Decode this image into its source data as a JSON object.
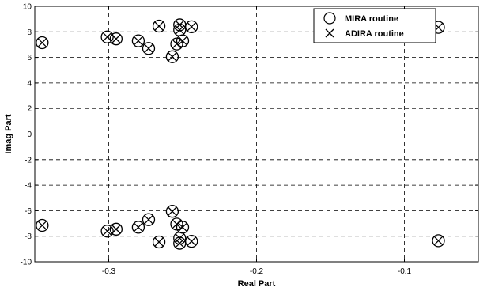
{
  "chart_data": {
    "type": "scatter",
    "xlabel": "Real Part",
    "ylabel": "Imag Part",
    "xlim": [
      -0.35,
      -0.05
    ],
    "ylim": [
      -10,
      10
    ],
    "x_ticks": [
      -0.3,
      -0.2,
      -0.1
    ],
    "x_tick_labels": [
      "-0.3",
      "-0.2",
      "-0.1"
    ],
    "y_ticks": [
      -10,
      -8,
      -6,
      -4,
      -2,
      0,
      2,
      4,
      6,
      8,
      10
    ],
    "y_tick_labels": [
      "-10",
      "-8",
      "-6",
      "-4",
      "-2",
      "0",
      "2",
      "4",
      "6",
      "8",
      "10"
    ],
    "grid": true,
    "legend_position": "top-right",
    "series": [
      {
        "name": "MIRA routine",
        "marker": "circle",
        "points": [
          [
            -0.345,
            7.15
          ],
          [
            -0.345,
            -7.15
          ],
          [
            -0.301,
            7.6
          ],
          [
            -0.301,
            -7.6
          ],
          [
            -0.295,
            7.45
          ],
          [
            -0.295,
            -7.45
          ],
          [
            -0.28,
            7.3
          ],
          [
            -0.28,
            -7.3
          ],
          [
            -0.273,
            6.7
          ],
          [
            -0.273,
            -6.7
          ],
          [
            -0.266,
            8.45
          ],
          [
            -0.266,
            -8.45
          ],
          [
            -0.257,
            6.05
          ],
          [
            -0.257,
            -6.05
          ],
          [
            -0.254,
            7.05
          ],
          [
            -0.254,
            -7.05
          ],
          [
            -0.252,
            8.15
          ],
          [
            -0.252,
            -8.15
          ],
          [
            -0.252,
            8.55
          ],
          [
            -0.252,
            -8.55
          ],
          [
            -0.25,
            7.3
          ],
          [
            -0.25,
            -7.3
          ],
          [
            -0.244,
            8.4
          ],
          [
            -0.244,
            -8.4
          ],
          [
            -0.077,
            8.35
          ],
          [
            -0.077,
            -8.35
          ]
        ]
      },
      {
        "name": "ADIRA routine",
        "marker": "x",
        "points": [
          [
            -0.345,
            7.15
          ],
          [
            -0.345,
            -7.15
          ],
          [
            -0.301,
            7.6
          ],
          [
            -0.301,
            -7.6
          ],
          [
            -0.295,
            7.45
          ],
          [
            -0.295,
            -7.45
          ],
          [
            -0.28,
            7.3
          ],
          [
            -0.28,
            -7.3
          ],
          [
            -0.273,
            6.7
          ],
          [
            -0.273,
            -6.7
          ],
          [
            -0.266,
            8.45
          ],
          [
            -0.266,
            -8.45
          ],
          [
            -0.257,
            6.05
          ],
          [
            -0.257,
            -6.05
          ],
          [
            -0.254,
            7.05
          ],
          [
            -0.254,
            -7.05
          ],
          [
            -0.252,
            8.15
          ],
          [
            -0.252,
            -8.15
          ],
          [
            -0.252,
            8.55
          ],
          [
            -0.252,
            -8.55
          ],
          [
            -0.25,
            7.3
          ],
          [
            -0.25,
            -7.3
          ],
          [
            -0.244,
            8.4
          ],
          [
            -0.244,
            -8.4
          ],
          [
            -0.077,
            8.35
          ],
          [
            -0.077,
            -8.35
          ]
        ]
      }
    ]
  }
}
